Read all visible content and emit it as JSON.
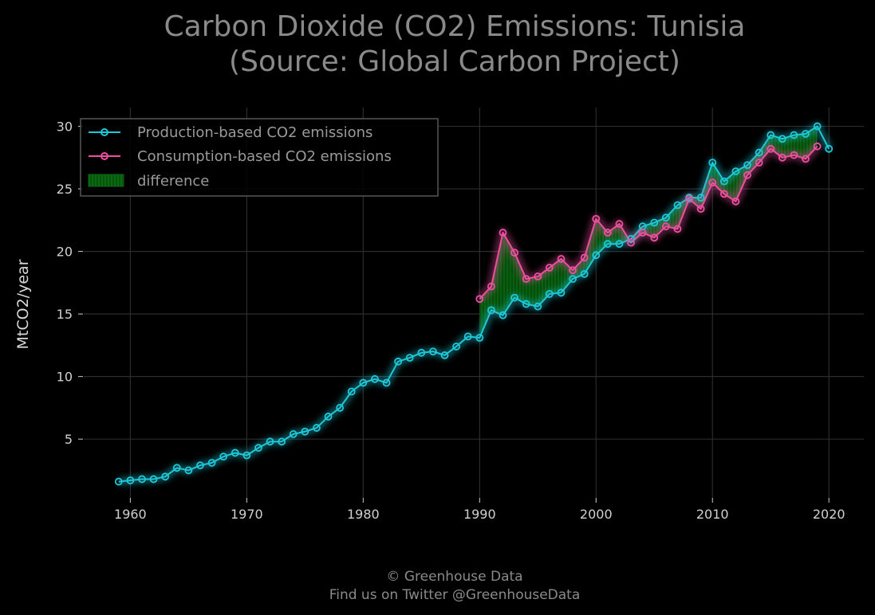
{
  "chart_data": {
    "type": "line",
    "title": [
      "Carbon Dioxide (CO2) Emissions: Tunisia",
      "(Source: Global Carbon Project)"
    ],
    "xlabel": "",
    "ylabel": "MtCO2/year",
    "xlim": [
      1956,
      2023
    ],
    "ylim": [
      0.3,
      31.5
    ],
    "x_ticks": [
      1960,
      1970,
      1980,
      1990,
      2000,
      2010,
      2020
    ],
    "y_ticks": [
      5,
      10,
      15,
      20,
      25,
      30
    ],
    "grid": true,
    "legend_position": "top-left",
    "series": [
      {
        "name": "Production-based CO2 emissions",
        "color": "#1ec8d8",
        "x": [
          1959,
          1960,
          1961,
          1962,
          1963,
          1964,
          1965,
          1966,
          1967,
          1968,
          1969,
          1970,
          1971,
          1972,
          1973,
          1974,
          1975,
          1976,
          1977,
          1978,
          1979,
          1980,
          1981,
          1982,
          1983,
          1984,
          1985,
          1986,
          1987,
          1988,
          1989,
          1990,
          1991,
          1992,
          1993,
          1994,
          1995,
          1996,
          1997,
          1998,
          1999,
          2000,
          2001,
          2002,
          2003,
          2004,
          2005,
          2006,
          2007,
          2008,
          2009,
          2010,
          2011,
          2012,
          2013,
          2014,
          2015,
          2016,
          2017,
          2018,
          2019,
          2020
        ],
        "values": [
          1.6,
          1.7,
          1.8,
          1.8,
          2.0,
          2.7,
          2.5,
          2.9,
          3.1,
          3.6,
          3.9,
          3.7,
          4.3,
          4.8,
          4.8,
          5.4,
          5.6,
          5.9,
          6.8,
          7.5,
          8.8,
          9.5,
          9.8,
          9.5,
          11.2,
          11.5,
          11.9,
          12.0,
          11.7,
          12.4,
          13.2,
          13.1,
          15.3,
          14.9,
          16.3,
          15.8,
          15.6,
          16.6,
          16.7,
          17.8,
          18.2,
          19.7,
          20.6,
          20.6,
          21.0,
          22.0,
          22.3,
          22.7,
          23.7,
          24.3,
          24.3,
          27.1,
          25.6,
          26.4,
          26.9,
          27.9,
          29.3,
          29.0,
          29.3,
          29.4,
          30.0,
          28.2
        ]
      },
      {
        "name": "Consumption-based CO2 emissions",
        "color": "#ee4fa0",
        "x": [
          1990,
          1991,
          1992,
          1993,
          1994,
          1995,
          1996,
          1997,
          1998,
          1999,
          2000,
          2001,
          2002,
          2003,
          2004,
          2005,
          2006,
          2007,
          2008,
          2009,
          2010,
          2011,
          2012,
          2013,
          2014,
          2015,
          2016,
          2017,
          2018,
          2019
        ],
        "values": [
          16.2,
          17.2,
          21.5,
          19.9,
          17.8,
          18.0,
          18.7,
          19.4,
          18.5,
          19.5,
          22.6,
          21.5,
          22.2,
          20.7,
          21.5,
          21.1,
          22.0,
          21.8,
          24.2,
          23.4,
          25.5,
          24.6,
          24.0,
          26.1,
          27.1,
          28.2,
          27.5,
          27.7,
          27.4,
          28.4
        ]
      }
    ],
    "fill_between": {
      "name": "difference",
      "color": "#0a6a12"
    }
  },
  "footer": {
    "line1": "© Greenhouse Data",
    "line2": "Find us on Twitter @GreenhouseData"
  }
}
